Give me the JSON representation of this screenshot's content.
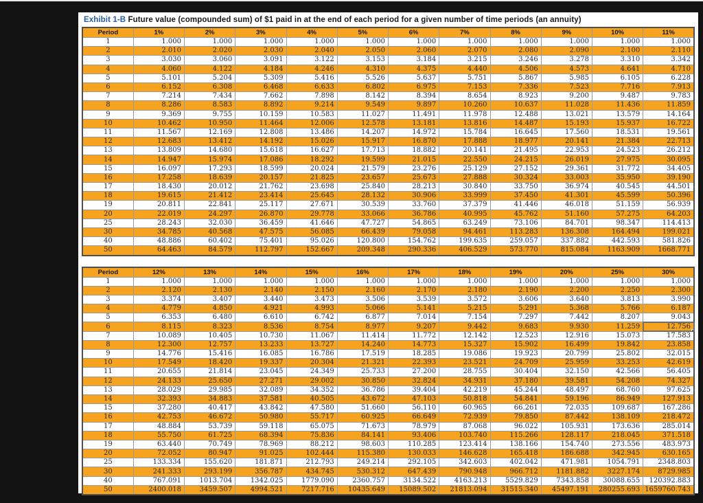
{
  "title": {
    "prefix": "Exhibit 1-B",
    "rest": " Future value (compounded sum) of $1 paid in at the end of each period for a given number of time periods (an annuity)"
  },
  "colors": {
    "row_fill_orange": "#f6a41f",
    "header_fill_orange": "#f6a41f",
    "title_blue": "#2b5da5",
    "page_background": "#131313",
    "grid_border": "#9a9a9a"
  },
  "tables": [
    {
      "name": "future-value-annuity-1-to-11-percent",
      "headers": [
        "Period",
        "1%",
        "2%",
        "3%",
        "4%",
        "5%",
        "6%",
        "7%",
        "8%",
        "9%",
        "10%",
        "11%"
      ],
      "rows": [
        [
          "1",
          "1.000",
          "1.000",
          "1.000",
          "1.000",
          "1.000",
          "1.000",
          "1.000",
          "1.000",
          "1.000",
          "1.000",
          "1.000"
        ],
        [
          "2",
          "2.010",
          "2.020",
          "2.030",
          "2.040",
          "2.050",
          "2.060",
          "2.070",
          "2.080",
          "2.090",
          "2.100",
          "2.110"
        ],
        [
          "3",
          "3.030",
          "3.060",
          "3.091",
          "3.122",
          "3.153",
          "3.184",
          "3.215",
          "3.246",
          "3.278",
          "3.310",
          "3.342"
        ],
        [
          "4",
          "4.060",
          "4.122",
          "4.184",
          "4.246",
          "4.310",
          "4.375",
          "4.440",
          "4.506",
          "4.573",
          "4.641",
          "4.710"
        ],
        [
          "5",
          "5.101",
          "5.204",
          "5.309",
          "5.416",
          "5.526",
          "5.637",
          "5.751",
          "5.867",
          "5.985",
          "6.105",
          "6.228"
        ],
        [
          "6",
          "6.152",
          "6.308",
          "6.468",
          "6.633",
          "6.802",
          "6.975",
          "7.153",
          "7.336",
          "7.523",
          "7.716",
          "7.913"
        ],
        [
          "7",
          "7.214",
          "7.434",
          "7.662",
          "7.898",
          "8.142",
          "8.394",
          "8.654",
          "8.923",
          "9.200",
          "9.487",
          "9.783"
        ],
        [
          "8",
          "8.286",
          "8.583",
          "8.892",
          "9.214",
          "9.549",
          "9.897",
          "10.260",
          "10.637",
          "11.028",
          "11.436",
          "11.859"
        ],
        [
          "9",
          "9.369",
          "9.755",
          "10.159",
          "10.583",
          "11.027",
          "11.491",
          "11.978",
          "12.488",
          "13.021",
          "13.579",
          "14.164"
        ],
        [
          "10",
          "10.462",
          "10.950",
          "11.464",
          "12.006",
          "12.578",
          "13.181",
          "13.816",
          "14.487",
          "15.193",
          "15.937",
          "16.722"
        ],
        [
          "11",
          "11.567",
          "12.169",
          "12.808",
          "13.486",
          "14.207",
          "14.972",
          "15.784",
          "16.645",
          "17.560",
          "18.531",
          "19.561"
        ],
        [
          "12",
          "12.683",
          "13.412",
          "14.192",
          "15.026",
          "15.917",
          "16.870",
          "17.888",
          "18.977",
          "20.141",
          "21.384",
          "22.713"
        ],
        [
          "13",
          "13.809",
          "14.680",
          "15.618",
          "16.627",
          "17.713",
          "18.882",
          "20.141",
          "21.495",
          "22.953",
          "24.523",
          "26.212"
        ],
        [
          "14",
          "14.947",
          "15.974",
          "17.086",
          "18.292",
          "19.599",
          "21.015",
          "22.550",
          "24.215",
          "26.019",
          "27.975",
          "30.095"
        ],
        [
          "15",
          "16.097",
          "17.293",
          "18.599",
          "20.024",
          "21.579",
          "23.276",
          "25.129",
          "27.152",
          "29.361",
          "31.772",
          "34.405"
        ],
        [
          "16",
          "17.258",
          "18.639",
          "20.157",
          "21.825",
          "23.657",
          "25.673",
          "27.888",
          "30.324",
          "33.003",
          "35.950",
          "39.190"
        ],
        [
          "17",
          "18.430",
          "20.012",
          "21.762",
          "23.698",
          "25.840",
          "28.213",
          "30.840",
          "33.750",
          "36.974",
          "40.545",
          "44.501"
        ],
        [
          "18",
          "19.615",
          "21.412",
          "23.414",
          "25.645",
          "28.132",
          "30.906",
          "33.999",
          "37.450",
          "41.301",
          "45.599",
          "50.396"
        ],
        [
          "19",
          "20.811",
          "22.841",
          "25.117",
          "27.671",
          "30.539",
          "33.760",
          "37.379",
          "41.446",
          "46.018",
          "51.159",
          "56.939"
        ],
        [
          "20",
          "22.019",
          "24.297",
          "26.870",
          "29.778",
          "33.066",
          "36.786",
          "40.995",
          "45.762",
          "51.160",
          "57.275",
          "64.203"
        ],
        [
          "25",
          "28.243",
          "32.030",
          "36.459",
          "41.646",
          "47.727",
          "54.865",
          "63.249",
          "73.106",
          "84.701",
          "98.347",
          "114.413"
        ],
        [
          "30",
          "34.785",
          "40.568",
          "47.575",
          "56.085",
          "66.439",
          "79.058",
          "94.461",
          "113.283",
          "136.308",
          "164.494",
          "199.021"
        ],
        [
          "40",
          "48.886",
          "60.402",
          "75.401",
          "95.026",
          "120.800",
          "154.762",
          "199.635",
          "259.057",
          "337.882",
          "442.593",
          "581.826"
        ],
        [
          "50",
          "64.463",
          "84.579",
          "112.797",
          "152.667",
          "209.348",
          "290.336",
          "406.529",
          "573.770",
          "815.084",
          "1163.909",
          "1668.771"
        ]
      ]
    },
    {
      "name": "future-value-annuity-12-to-30-percent",
      "headers": [
        "Period",
        "12%",
        "13%",
        "14%",
        "15%",
        "16%",
        "17%",
        "18%",
        "19%",
        "20%",
        "25%",
        "30%"
      ],
      "rows": [
        [
          "1",
          "1.000",
          "1.000",
          "1.000",
          "1.000",
          "1.000",
          "1.000",
          "1.000",
          "1.000",
          "1.000",
          "1.000",
          "1.000"
        ],
        [
          "2",
          "2.120",
          "2.130",
          "2.140",
          "2.150",
          "2.160",
          "2.170",
          "2.180",
          "2.190",
          "2.200",
          "2.250",
          "2.300"
        ],
        [
          "3",
          "3.374",
          "3.407",
          "3.440",
          "3.473",
          "3.506",
          "3.539",
          "3.572",
          "3.606",
          "3.640",
          "3.813",
          "3.990"
        ],
        [
          "4",
          "4.779",
          "4.850",
          "4.921",
          "4.993",
          "5.066",
          "5.141",
          "5.215",
          "5.291",
          "5.368",
          "5.766",
          "6.187"
        ],
        [
          "5",
          "6.353",
          "6.480",
          "6.610",
          "6.742",
          "6.877",
          "7.014",
          "7.154",
          "7.297",
          "7.442",
          "8.207",
          "9.043"
        ],
        [
          "6",
          "8.115",
          "8.323",
          "8.536",
          "8.754",
          "8.977",
          "9.207",
          "9.442",
          "9.683",
          "9.930",
          "11.259",
          "12.756"
        ],
        [
          "7",
          "10.089",
          "10.405",
          "10.730",
          "11.067",
          "11.414",
          "11.772",
          "12.142",
          "12.523",
          "12.916",
          "15.073",
          "17.583"
        ],
        [
          "8",
          "12.300",
          "12.757",
          "13.233",
          "13.727",
          "14.240",
          "14.773",
          "15.327",
          "15.902",
          "16.499",
          "19.842",
          "23.858"
        ],
        [
          "9",
          "14.776",
          "15.416",
          "16.085",
          "16.786",
          "17.519",
          "18.285",
          "19.086",
          "19.923",
          "20.799",
          "25.802",
          "32.015"
        ],
        [
          "10",
          "17.549",
          "18.420",
          "19.337",
          "20.304",
          "21.321",
          "22.393",
          "23.521",
          "24.709",
          "25.959",
          "33.253",
          "42.619"
        ],
        [
          "11",
          "20.655",
          "21.814",
          "23.045",
          "24.349",
          "25.733",
          "27.200",
          "28.755",
          "30.404",
          "32.150",
          "42.566",
          "56.405"
        ],
        [
          "12",
          "24.133",
          "25.650",
          "27.271",
          "29.002",
          "30.850",
          "32.824",
          "34.931",
          "37.180",
          "39.581",
          "54.208",
          "74.327"
        ],
        [
          "13",
          "28.029",
          "29.985",
          "32.089",
          "34.352",
          "36.786",
          "39.404",
          "42.219",
          "45.244",
          "48.497",
          "68.760",
          "97.625"
        ],
        [
          "14",
          "32.393",
          "34.883",
          "37.581",
          "40.505",
          "43.672",
          "47.103",
          "50.818",
          "54.841",
          "59.196",
          "86.949",
          "127.913"
        ],
        [
          "15",
          "37.280",
          "40.417",
          "43.842",
          "47.580",
          "51.660",
          "56.110",
          "60.965",
          "66.261",
          "72.035",
          "109.687",
          "167.286"
        ],
        [
          "16",
          "42.753",
          "46.672",
          "50.980",
          "55.717",
          "60.925",
          "66.649",
          "72.939",
          "79.850",
          "87.442",
          "138.109",
          "218.472"
        ],
        [
          "17",
          "48.884",
          "53.739",
          "59.118",
          "65.075",
          "71.673",
          "78.979",
          "87.068",
          "96.022",
          "105.931",
          "173.636",
          "285.014"
        ],
        [
          "18",
          "55.750",
          "61.725",
          "68.394",
          "75.836",
          "84.141",
          "93.406",
          "103.740",
          "115.266",
          "128.117",
          "218.045",
          "371.518"
        ],
        [
          "19",
          "63.440",
          "70.749",
          "78.969",
          "88.212",
          "98.603",
          "110.285",
          "123.414",
          "138.166",
          "154.740",
          "273.556",
          "483.973"
        ],
        [
          "20",
          "72.052",
          "80.947",
          "91.025",
          "102.444",
          "115.380",
          "130.033",
          "146.628",
          "165.418",
          "186.688",
          "342.945",
          "630.165"
        ],
        [
          "25",
          "133.334",
          "155.620",
          "181.871",
          "212.793",
          "249.214",
          "292.105",
          "342.603",
          "402.042",
          "471.981",
          "1054.791",
          "2348.803"
        ],
        [
          "30",
          "241.333",
          "293.199",
          "356.787",
          "434.745",
          "530.312",
          "647.439",
          "790.948",
          "966.712",
          "1181.882",
          "3227.174",
          "8729.985"
        ],
        [
          "40",
          "767.091",
          "1013.704",
          "1342.025",
          "1779.090",
          "2360.757",
          "3134.522",
          "4163.213",
          "5529.829",
          "7343.858",
          "30088.655",
          "120392.883"
        ],
        [
          "50",
          "2400.018",
          "3459.507",
          "4994.521",
          "7217.716",
          "10435.649",
          "15089.502",
          "21813.094",
          "31515.340",
          "45497.191",
          "280255.693",
          "1659760.743"
        ]
      ]
    }
  ],
  "selection": {
    "table_index": 1,
    "row_index": 5,
    "col_index": 11,
    "selected_value": "12.756"
  }
}
